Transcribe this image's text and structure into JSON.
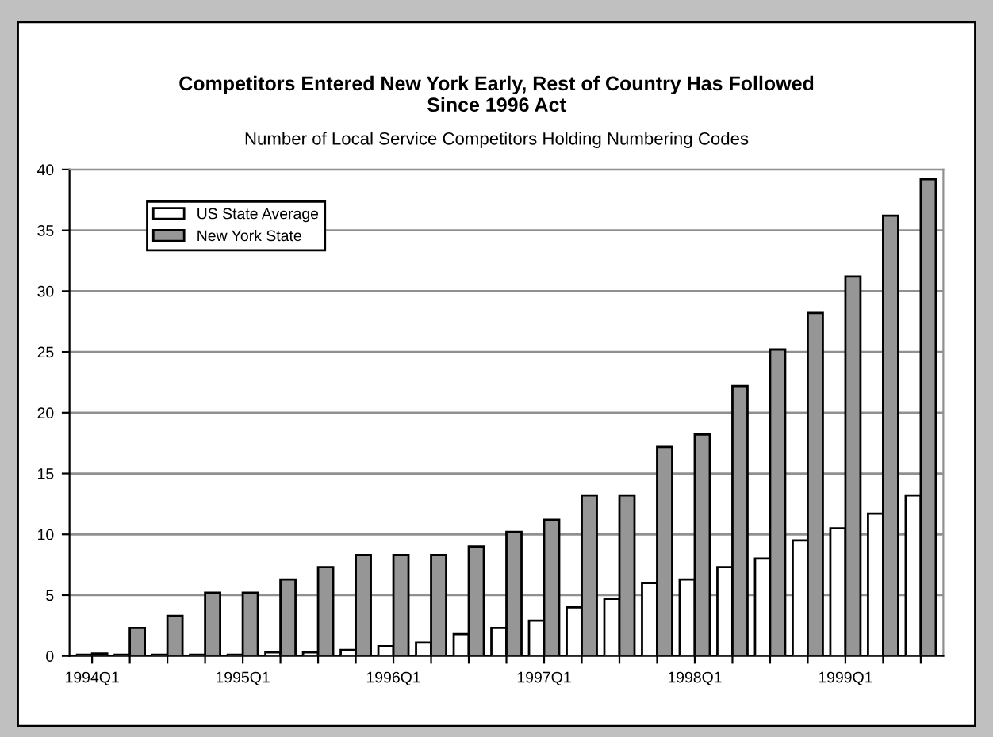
{
  "chart_data": {
    "type": "bar",
    "title": "Competitors Entered New York Early, Rest of Country Has Followed\nSince 1996 Act",
    "subtitle": "Number of Local Service Competitors Holding Numbering Codes",
    "categories": [
      "1994Q1",
      null,
      null,
      null,
      "1995Q1",
      null,
      null,
      null,
      "1996Q1",
      null,
      null,
      null,
      "1997Q1",
      null,
      null,
      null,
      "1998Q1",
      null,
      null,
      null,
      "1999Q1",
      null,
      null
    ],
    "series": [
      {
        "name": "US State Average",
        "color": "#ffffff",
        "values": [
          0.1,
          0.1,
          0.1,
          0.1,
          0.1,
          0.3,
          0.3,
          0.5,
          0.8,
          1.1,
          1.8,
          2.3,
          2.9,
          4,
          4.7,
          6,
          6.3,
          7.3,
          8,
          9.5,
          10.5,
          11.7,
          13.2
        ]
      },
      {
        "name": "New York State",
        "color": "#969696",
        "values": [
          0.2,
          2.3,
          3.3,
          5.2,
          5.2,
          6.3,
          7.3,
          8.3,
          8.3,
          8.3,
          9,
          10.2,
          11.2,
          13.2,
          13.2,
          17.2,
          18.2,
          22.2,
          25.2,
          28.2,
          31.2,
          36.2,
          39.2
        ]
      }
    ],
    "ylim": [
      0,
      40
    ],
    "yticks": [
      0,
      5,
      10,
      15,
      20,
      25,
      30,
      35,
      40
    ],
    "grid": "y",
    "legend": "top left"
  }
}
